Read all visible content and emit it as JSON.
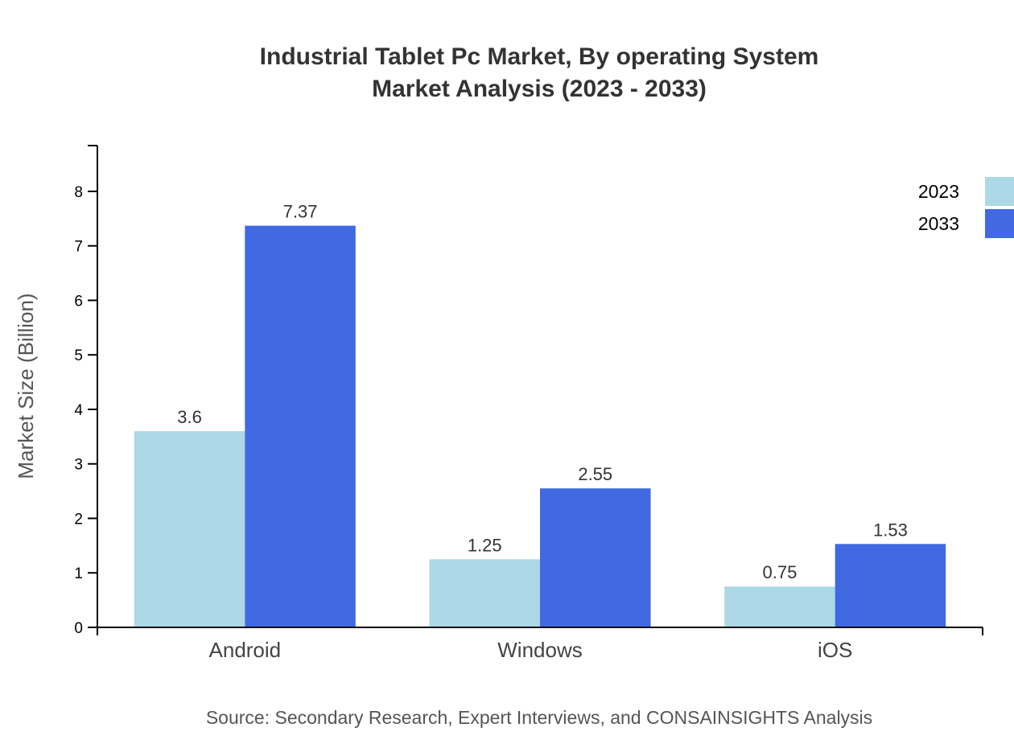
{
  "chart_data": {
    "type": "bar",
    "title_line1": "Industrial Tablet Pc Market, By operating System",
    "title_line2": "Market Analysis (2023 - 2033)",
    "xlabel": "",
    "ylabel": "Market Size (Billion)",
    "categories": [
      "Android",
      "Windows",
      "iOS"
    ],
    "series": [
      {
        "name": "2023",
        "color": "#ADD8E6",
        "values": [
          3.6,
          1.25,
          0.75
        ],
        "labels": [
          "3.6",
          "1.25",
          "0.75"
        ]
      },
      {
        "name": "2033",
        "color": "#4169E1",
        "values": [
          7.37,
          2.55,
          1.53
        ],
        "labels": [
          "7.37",
          "2.55",
          "1.53"
        ]
      }
    ],
    "ylim": [
      0,
      8.84
    ],
    "yticks": [
      "0",
      "1",
      "2",
      "3",
      "4",
      "5",
      "6",
      "7",
      "8"
    ],
    "grid": false,
    "legend_position": "top-right",
    "source": "Source: Secondary Research, Expert Interviews, and CONSAINSIGHTS Analysis"
  }
}
